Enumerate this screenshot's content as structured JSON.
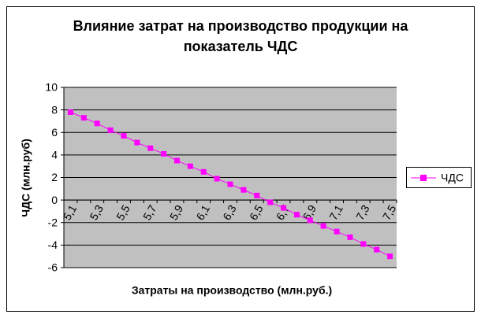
{
  "chart_data": {
    "type": "line",
    "title": "Влияние затрат на производство продукции на показатель ЧДС",
    "x_label": "Затраты на производство (млн.руб.)",
    "y_label": "ЧДС (млн.руб)",
    "categories": [
      "5,1",
      null,
      "5,3",
      null,
      "5,5",
      null,
      "5,7",
      null,
      "5,9",
      null,
      "6,1",
      null,
      "6,3",
      null,
      "6,5",
      null,
      "6,7",
      null,
      "6,9",
      null,
      "7,1",
      null,
      "7,3",
      null,
      "7,5"
    ],
    "series": [
      {
        "name": "ЧДС",
        "color": "#ff00ff",
        "values": [
          7.8,
          7.3,
          6.8,
          6.2,
          5.7,
          5.1,
          4.6,
          4.1,
          3.5,
          3.0,
          2.5,
          1.9,
          1.4,
          0.9,
          0.4,
          -0.2,
          -0.7,
          -1.3,
          -1.8,
          -2.3,
          -2.8,
          -3.3,
          -3.9,
          -4.4,
          -5.0
        ]
      }
    ],
    "ylim": [
      -6,
      10
    ],
    "yticks": [
      -6,
      -4,
      -2,
      0,
      2,
      4,
      6,
      8,
      10
    ],
    "grid": true,
    "plot_color": "#c0c0c0",
    "legend": "right"
  }
}
